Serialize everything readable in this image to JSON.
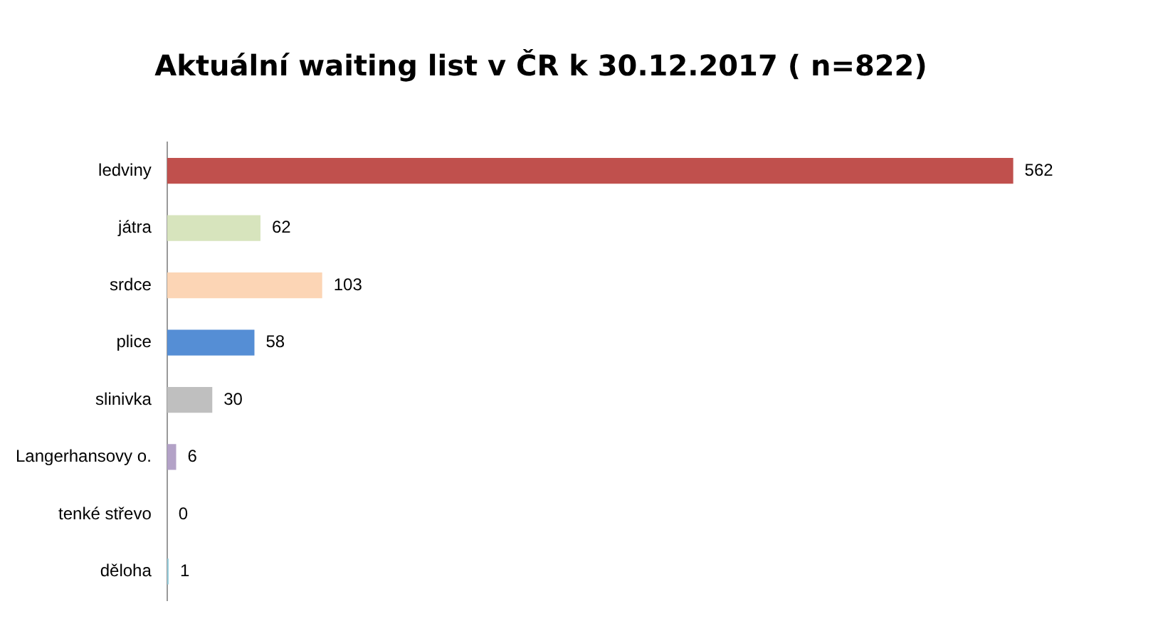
{
  "chart_data": {
    "type": "bar",
    "orientation": "horizontal",
    "title": "Aktuální waiting list v ČR k 30.12.2017 ( n=822)",
    "categories": [
      "ledviny",
      "játra",
      "srdce",
      "plice",
      "slinivka",
      "Langerhansovy o.",
      "tenké střevo",
      "děloha"
    ],
    "values": [
      562,
      62,
      103,
      58,
      30,
      6,
      0,
      1
    ],
    "colors": [
      "#c0504d",
      "#d7e4bd",
      "#fcd5b5",
      "#558ed5",
      "#bfbfbf",
      "#b3a2c7",
      "#8eb4e3",
      "#93cddd"
    ],
    "data_labels": true,
    "legend": false
  }
}
